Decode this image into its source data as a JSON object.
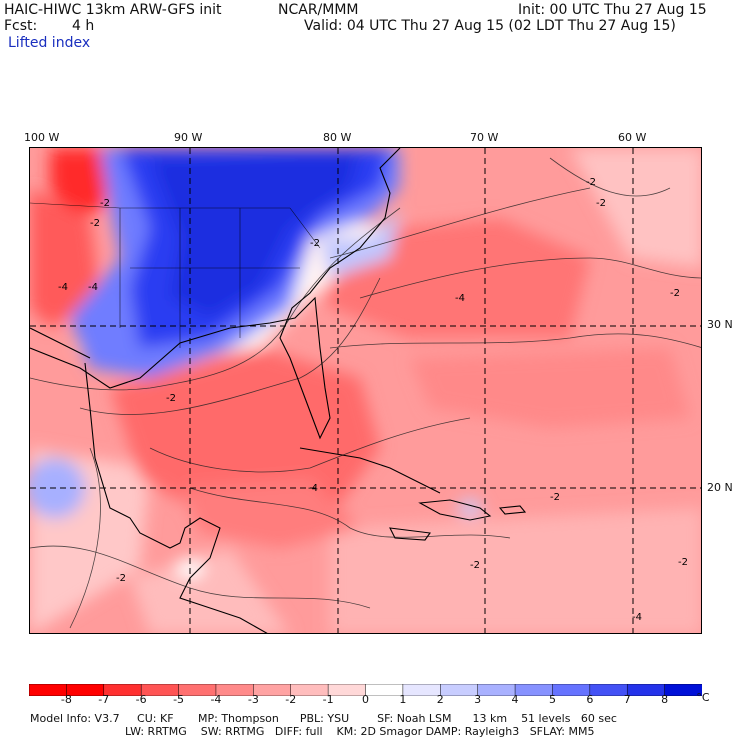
{
  "header": {
    "title_left": "HAIC-HIWC 13km ARW-GFS init",
    "org": "NCAR/MMM",
    "init": "Init: 00 UTC Thu 27 Aug 15",
    "fcst_label": "Fcst:",
    "fcst_value": "4 h",
    "valid": "Valid: 04 UTC Thu 27 Aug 15 (02 LDT Thu 27 Aug 15)",
    "field": "Lifted index"
  },
  "map": {
    "lon_labels": [
      "100 W",
      "90 W",
      "80 W",
      "70 W",
      "60 W"
    ],
    "lat_labels": [
      "30 N",
      "20 N"
    ],
    "contour_labels": [
      "-2",
      "-2",
      "-2",
      "-4",
      "-4",
      "-2",
      "-2",
      "-2",
      "-4",
      "-4",
      "-2",
      "-4",
      "-2",
      "-2",
      "-2",
      "-2"
    ],
    "colors": {
      "cold": "#1432e6",
      "warm": "#e81c1c",
      "neutral": "#ffffff"
    }
  },
  "colorbar": {
    "ticks": [
      "-8",
      "-7",
      "-6",
      "-5",
      "-4",
      "-3",
      "-2",
      "-1",
      "0",
      "1",
      "2",
      "3",
      "4",
      "5",
      "6",
      "7",
      "8"
    ],
    "unit": "°C",
    "colors": [
      "#ff0000",
      "#ff3030",
      "#ff5454",
      "#ff7070",
      "#ff8a8a",
      "#ffa3a3",
      "#ffbdbd",
      "#ffd8d8",
      "#ffffff",
      "#e6e6ff",
      "#c8cdff",
      "#a9b1ff",
      "#8792ff",
      "#6673ff",
      "#4452f5",
      "#2433ea",
      "#0010d8"
    ]
  },
  "footer": {
    "line1": "Model Info: V3.7     CU: KF       MP: Thompson      PBL: YSU        SF: Noah LSM      13 km    51 levels   60 sec",
    "line2": "LW: RRTMG    SW: RRTMG   DIFF: full    KM: 2D Smagor DAMP: Rayleigh3   SFLAY: MM5"
  }
}
